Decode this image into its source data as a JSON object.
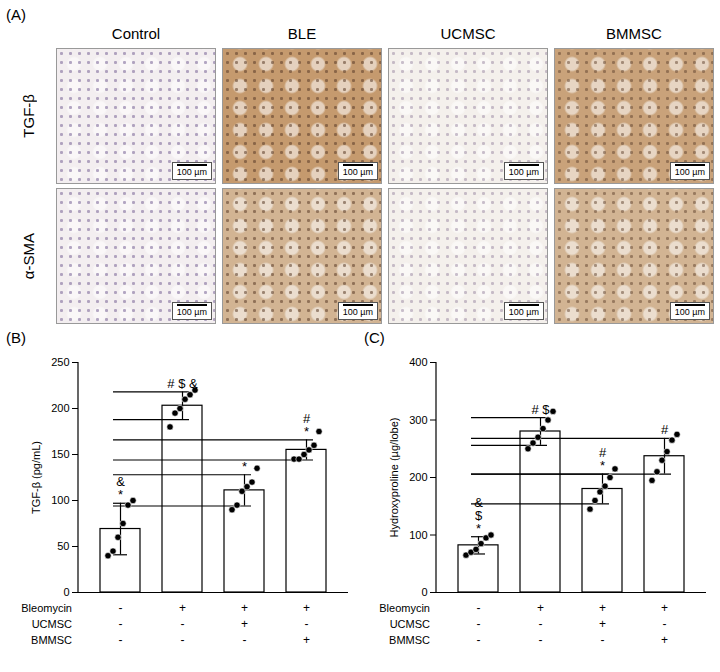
{
  "image_panel": {
    "panel_label": "(A)",
    "columns": [
      "Control",
      "BLE",
      "UCMSC",
      "BMMSC"
    ],
    "rows": [
      "TGF-β",
      "α-SMA"
    ],
    "scale_bar": "100 µm"
  },
  "chart_data": [
    {
      "type": "bar",
      "panel_label": "(B)",
      "y_label": "TGF-β (pg/mL)",
      "categories": [
        null,
        null,
        null,
        null
      ],
      "values": [
        69,
        203,
        111,
        155
      ],
      "errors": [
        28,
        15,
        17,
        11
      ],
      "points": [
        [
          40,
          45,
          60,
          75,
          95,
          100
        ],
        [
          180,
          195,
          200,
          210,
          215,
          220
        ],
        [
          90,
          95,
          110,
          115,
          120,
          135
        ],
        [
          145,
          145,
          150,
          155,
          160,
          175
        ]
      ],
      "annotations": [
        [
          "&",
          "*"
        ],
        [
          "# $ &"
        ],
        [
          "*"
        ],
        [
          "#",
          "*"
        ]
      ],
      "treatments": [
        {
          "label": "Bleomycin",
          "signs": [
            "-",
            "+",
            "+",
            "+"
          ]
        },
        {
          "label": "UCMSC",
          "signs": [
            "-",
            "-",
            "+",
            "-"
          ]
        },
        {
          "label": "BMMSC",
          "signs": [
            "-",
            "-",
            "-",
            "+"
          ]
        }
      ],
      "ylim": [
        0,
        250
      ],
      "yticks": [
        0,
        50,
        100,
        150,
        200,
        250
      ],
      "tick_labels": "y",
      "color": "#ffffff"
    },
    {
      "type": "bar",
      "panel_label": "(C)",
      "y_label": "Hydroxyproline (µg/lobe)",
      "categories": [
        null,
        null,
        null,
        null
      ],
      "values": [
        82,
        280,
        180,
        237
      ],
      "errors": [
        15,
        24,
        26,
        31
      ],
      "points": [
        [
          65,
          70,
          75,
          85,
          95,
          100
        ],
        [
          250,
          260,
          270,
          285,
          300,
          315
        ],
        [
          145,
          160,
          175,
          185,
          200,
          215
        ],
        [
          195,
          210,
          230,
          245,
          265,
          275
        ]
      ],
      "annotations": [
        [
          "&",
          "$",
          "*"
        ],
        [
          "# $"
        ],
        [
          "#",
          "*"
        ],
        [
          "#"
        ]
      ],
      "treatments": [
        {
          "label": "Bleomycin",
          "signs": [
            "-",
            "+",
            "+",
            "+"
          ]
        },
        {
          "label": "UCMSC",
          "signs": [
            "-",
            "-",
            "+",
            "-"
          ]
        },
        {
          "label": "BMMSC",
          "signs": [
            "-",
            "-",
            "-",
            "+"
          ]
        }
      ],
      "ylim": [
        0,
        400
      ],
      "yticks": [
        0,
        100,
        200,
        300,
        400
      ],
      "tick_labels": "y",
      "color": "#ffffff"
    }
  ]
}
